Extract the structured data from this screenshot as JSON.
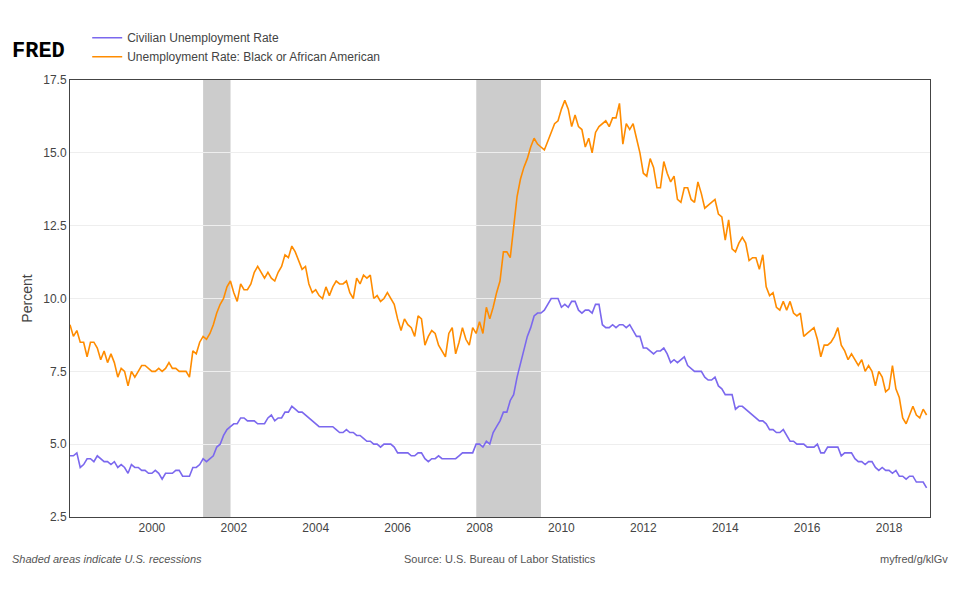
{
  "chart_data": {
    "type": "line",
    "annotations": [
      "FRED",
      "Shaded areas indicate U.S. recessions",
      "Source: U.S. Bureau of Labor Statistics",
      "myfred/g/klGv"
    ],
    "ylabel": "Percent",
    "x": [
      1998.0,
      1998.083,
      1998.167,
      1998.25,
      1998.333,
      1998.417,
      1998.5,
      1998.583,
      1998.667,
      1998.75,
      1998.833,
      1998.917,
      1999.0,
      1999.083,
      1999.167,
      1999.25,
      1999.333,
      1999.417,
      1999.5,
      1999.583,
      1999.667,
      1999.75,
      1999.833,
      1999.917,
      2000.0,
      2000.083,
      2000.167,
      2000.25,
      2000.333,
      2000.417,
      2000.5,
      2000.583,
      2000.667,
      2000.75,
      2000.833,
      2000.917,
      2001.0,
      2001.083,
      2001.167,
      2001.25,
      2001.333,
      2001.417,
      2001.5,
      2001.583,
      2001.667,
      2001.75,
      2001.833,
      2001.917,
      2002.0,
      2002.083,
      2002.167,
      2002.25,
      2002.333,
      2002.417,
      2002.5,
      2002.583,
      2002.667,
      2002.75,
      2002.833,
      2002.917,
      2003.0,
      2003.083,
      2003.167,
      2003.25,
      2003.333,
      2003.417,
      2003.5,
      2003.583,
      2003.667,
      2003.75,
      2003.833,
      2003.917,
      2004.0,
      2004.083,
      2004.167,
      2004.25,
      2004.333,
      2004.417,
      2004.5,
      2004.583,
      2004.667,
      2004.75,
      2004.833,
      2004.917,
      2005.0,
      2005.083,
      2005.167,
      2005.25,
      2005.333,
      2005.417,
      2005.5,
      2005.583,
      2005.667,
      2005.75,
      2005.833,
      2005.917,
      2006.0,
      2006.083,
      2006.167,
      2006.25,
      2006.333,
      2006.417,
      2006.5,
      2006.583,
      2006.667,
      2006.75,
      2006.833,
      2006.917,
      2007.0,
      2007.083,
      2007.167,
      2007.25,
      2007.333,
      2007.417,
      2007.5,
      2007.583,
      2007.667,
      2007.75,
      2007.833,
      2007.917,
      2008.0,
      2008.083,
      2008.167,
      2008.25,
      2008.333,
      2008.417,
      2008.5,
      2008.583,
      2008.667,
      2008.75,
      2008.833,
      2008.917,
      2009.0,
      2009.083,
      2009.167,
      2009.25,
      2009.333,
      2009.417,
      2009.5,
      2009.583,
      2009.667,
      2009.75,
      2009.833,
      2009.917,
      2010.0,
      2010.083,
      2010.167,
      2010.25,
      2010.333,
      2010.417,
      2010.5,
      2010.583,
      2010.667,
      2010.75,
      2010.833,
      2010.917,
      2011.0,
      2011.083,
      2011.167,
      2011.25,
      2011.333,
      2011.417,
      2011.5,
      2011.583,
      2011.667,
      2011.75,
      2011.833,
      2011.917,
      2012.0,
      2012.083,
      2012.167,
      2012.25,
      2012.333,
      2012.417,
      2012.5,
      2012.583,
      2012.667,
      2012.75,
      2012.833,
      2012.917,
      2013.0,
      2013.083,
      2013.167,
      2013.25,
      2013.333,
      2013.417,
      2013.5,
      2013.583,
      2013.667,
      2013.75,
      2013.833,
      2013.917,
      2014.0,
      2014.083,
      2014.167,
      2014.25,
      2014.333,
      2014.417,
      2014.5,
      2014.583,
      2014.667,
      2014.75,
      2014.833,
      2014.917,
      2015.0,
      2015.083,
      2015.167,
      2015.25,
      2015.333,
      2015.417,
      2015.5,
      2015.583,
      2015.667,
      2015.75,
      2015.833,
      2015.917,
      2016.0,
      2016.083,
      2016.167,
      2016.25,
      2016.333,
      2016.417,
      2016.5,
      2016.583,
      2016.667,
      2016.75,
      2016.833,
      2016.917,
      2017.0,
      2017.083,
      2017.167,
      2017.25,
      2017.333,
      2017.417,
      2017.5,
      2017.583,
      2017.667,
      2017.75,
      2017.833,
      2017.917,
      2018.0,
      2018.083,
      2018.167,
      2018.25,
      2018.333,
      2018.417,
      2018.5,
      2018.583,
      2018.667,
      2018.75,
      2018.833,
      2018.917
    ],
    "series": [
      {
        "name": "Civilian Unemployment Rate",
        "color": "#7B68EE",
        "values": [
          4.6,
          4.6,
          4.7,
          4.2,
          4.3,
          4.5,
          4.5,
          4.4,
          4.6,
          4.5,
          4.4,
          4.4,
          4.3,
          4.4,
          4.2,
          4.3,
          4.2,
          4.0,
          4.3,
          4.2,
          4.2,
          4.1,
          4.1,
          4.0,
          4.0,
          4.1,
          4.0,
          3.8,
          4.0,
          4.0,
          4.0,
          4.1,
          4.1,
          3.9,
          3.9,
          3.9,
          4.2,
          4.2,
          4.3,
          4.5,
          4.4,
          4.5,
          4.6,
          4.9,
          5.0,
          5.3,
          5.5,
          5.6,
          5.7,
          5.7,
          5.9,
          5.9,
          5.8,
          5.8,
          5.8,
          5.7,
          5.7,
          5.7,
          5.9,
          6.0,
          5.8,
          5.9,
          5.9,
          6.1,
          6.1,
          6.3,
          6.2,
          6.1,
          6.1,
          6.0,
          5.9,
          5.8,
          5.7,
          5.6,
          5.6,
          5.6,
          5.6,
          5.6,
          5.5,
          5.4,
          5.4,
          5.5,
          5.4,
          5.4,
          5.3,
          5.3,
          5.2,
          5.1,
          5.1,
          5.0,
          5.0,
          4.9,
          5.0,
          5.0,
          5.0,
          4.9,
          4.7,
          4.7,
          4.7,
          4.7,
          4.6,
          4.6,
          4.7,
          4.7,
          4.5,
          4.4,
          4.5,
          4.5,
          4.6,
          4.5,
          4.5,
          4.5,
          4.5,
          4.5,
          4.6,
          4.7,
          4.7,
          4.7,
          4.7,
          5.0,
          5.0,
          4.9,
          5.1,
          5.0,
          5.4,
          5.6,
          5.8,
          6.1,
          6.1,
          6.5,
          6.7,
          7.3,
          7.8,
          8.3,
          8.7,
          9.0,
          9.4,
          9.5,
          9.5,
          9.6,
          9.8,
          10.0,
          10.0,
          10.0,
          9.7,
          9.8,
          9.7,
          9.9,
          9.9,
          9.6,
          9.5,
          9.6,
          9.6,
          9.5,
          9.8,
          9.8,
          9.1,
          9.0,
          9.0,
          9.1,
          9.0,
          9.1,
          9.1,
          9.0,
          9.1,
          8.9,
          8.7,
          8.7,
          8.3,
          8.3,
          8.2,
          8.1,
          8.2,
          8.2,
          8.3,
          8.1,
          7.8,
          7.9,
          7.8,
          7.9,
          8.0,
          7.7,
          7.6,
          7.5,
          7.5,
          7.5,
          7.3,
          7.2,
          7.2,
          7.3,
          7.0,
          6.9,
          6.7,
          6.7,
          6.7,
          6.2,
          6.3,
          6.3,
          6.2,
          6.1,
          6.0,
          5.9,
          5.8,
          5.8,
          5.7,
          5.5,
          5.5,
          5.4,
          5.4,
          5.5,
          5.3,
          5.1,
          5.1,
          5.0,
          5.0,
          5.0,
          4.9,
          4.9,
          4.9,
          5.0,
          4.7,
          4.7,
          4.9,
          4.9,
          4.9,
          4.9,
          4.6,
          4.7,
          4.7,
          4.7,
          4.5,
          4.4,
          4.4,
          4.3,
          4.4,
          4.4,
          4.2,
          4.1,
          4.2,
          4.1,
          4.1,
          4.0,
          4.1,
          3.9,
          3.9,
          3.8,
          3.9,
          3.9,
          3.7,
          3.7,
          3.7,
          3.5
        ]
      },
      {
        "name": "Unemployment Rate: Black or African American",
        "color": "#FF8C00",
        "values": [
          9.1,
          8.7,
          8.9,
          8.5,
          8.5,
          8.0,
          8.5,
          8.5,
          8.3,
          7.9,
          8.2,
          7.8,
          8.1,
          7.8,
          7.3,
          7.6,
          7.5,
          7.0,
          7.5,
          7.3,
          7.5,
          7.7,
          7.7,
          7.6,
          7.5,
          7.5,
          7.6,
          7.5,
          7.6,
          7.8,
          7.6,
          7.6,
          7.5,
          7.5,
          7.5,
          7.3,
          8.2,
          8.1,
          8.5,
          8.7,
          8.6,
          8.8,
          9.1,
          9.5,
          9.8,
          10.0,
          10.4,
          10.6,
          10.2,
          9.9,
          10.5,
          10.3,
          10.3,
          10.5,
          10.9,
          11.1,
          10.9,
          10.7,
          10.9,
          10.7,
          10.6,
          10.9,
          11.1,
          11.5,
          11.4,
          11.8,
          11.6,
          11.3,
          11.0,
          11.1,
          10.5,
          10.2,
          10.3,
          10.1,
          10.0,
          10.4,
          10.1,
          10.4,
          10.6,
          10.5,
          10.5,
          10.6,
          10.2,
          10.0,
          10.7,
          10.5,
          10.8,
          10.7,
          10.8,
          10.0,
          10.1,
          9.9,
          10.0,
          10.2,
          10.0,
          9.8,
          9.3,
          8.9,
          9.3,
          9.1,
          9.0,
          8.7,
          9.4,
          9.3,
          8.4,
          8.7,
          8.9,
          8.8,
          8.4,
          8.2,
          8.0,
          8.8,
          9.0,
          8.1,
          8.5,
          9.0,
          8.6,
          8.4,
          9.0,
          8.8,
          9.2,
          8.8,
          9.7,
          9.3,
          9.7,
          10.2,
          10.6,
          11.6,
          11.6,
          11.4,
          12.5,
          13.5,
          14.1,
          14.5,
          14.8,
          15.2,
          15.5,
          15.3,
          15.2,
          15.1,
          15.4,
          15.7,
          16.0,
          16.1,
          16.5,
          16.8,
          16.5,
          15.9,
          16.3,
          15.9,
          15.8,
          15.2,
          15.5,
          15.0,
          15.7,
          15.9,
          16.0,
          16.1,
          15.9,
          16.2,
          16.2,
          16.7,
          15.3,
          16.0,
          15.8,
          16.0,
          15.5,
          15.0,
          14.3,
          14.2,
          14.8,
          14.5,
          13.8,
          13.8,
          14.7,
          14.3,
          14.0,
          14.2,
          13.4,
          13.3,
          13.8,
          13.8,
          13.4,
          13.3,
          14.0,
          13.6,
          13.1,
          13.2,
          13.3,
          13.4,
          12.9,
          12.8,
          12.0,
          12.7,
          11.7,
          11.6,
          11.9,
          12.1,
          11.9,
          11.3,
          11.4,
          11.4,
          11.0,
          11.5,
          10.4,
          10.1,
          10.2,
          9.7,
          9.6,
          9.9,
          9.6,
          9.9,
          9.5,
          9.4,
          9.5,
          8.7,
          8.8,
          8.9,
          9.0,
          8.6,
          8.0,
          8.4,
          8.4,
          8.5,
          8.7,
          9.0,
          8.4,
          8.2,
          7.9,
          8.1,
          7.9,
          7.7,
          7.9,
          7.5,
          7.7,
          7.5,
          7.0,
          7.5,
          7.3,
          6.8,
          6.9,
          7.7,
          6.9,
          6.6,
          5.9,
          5.7,
          6.0,
          6.3,
          6.0,
          5.9,
          6.2,
          6.0
        ]
      }
    ],
    "recession_shades": {
      "color": "#cccccc",
      "ranges": [
        {
          "start": 2001.25,
          "end": 2001.92
        },
        {
          "start": 2007.92,
          "end": 2009.5
        }
      ]
    },
    "xlim": [
      1998.0,
      2019.0
    ],
    "xticks": [
      2000,
      2002,
      2004,
      2006,
      2008,
      2010,
      2012,
      2014,
      2016,
      2018
    ],
    "ylim": [
      2.5,
      17.5
    ],
    "yticks": [
      2.5,
      {
        "value": 5.0,
        "label": "5.0"
      },
      7.5,
      {
        "value": 10.0,
        "label": "10.0"
      },
      12.5,
      {
        "value": 15.0,
        "label": "15.0"
      },
      17.5
    ],
    "grid": "y",
    "legend": "top"
  }
}
